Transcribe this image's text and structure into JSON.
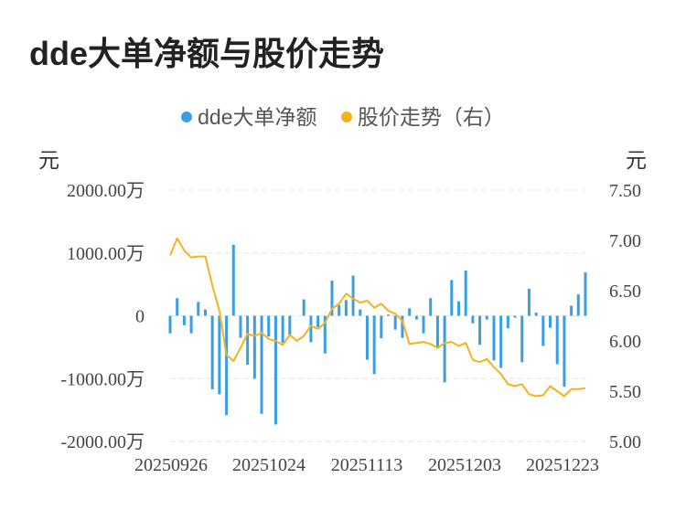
{
  "chart_data": {
    "type": "bar+line",
    "title": "dde大单净额与股价走势",
    "legend": [
      {
        "name": "dde大单净额",
        "color": "#3a9ee4"
      },
      {
        "name": "股价走势（右）",
        "color": "#f5b21e"
      }
    ],
    "legend_position": "top-center",
    "left_unit": "元",
    "right_unit": "元",
    "y_left": {
      "min": -2000,
      "max": 2000,
      "ticks": [
        "2000.00万",
        "1000.00万",
        "0",
        "-1000.00万",
        "-2000.00万"
      ]
    },
    "y_right": {
      "min": 5.0,
      "max": 7.5,
      "ticks": [
        "7.50",
        "7.00",
        "6.50",
        "6.00",
        "5.50",
        "5.00"
      ]
    },
    "x_ticks": [
      "20250926",
      "20251024",
      "20251113",
      "20251203",
      "20251223"
    ],
    "grid": true,
    "bar_values": [
      -280,
      280,
      -150,
      -280,
      220,
      100,
      -1170,
      -1250,
      -1580,
      1130,
      -350,
      -780,
      -1000,
      -1560,
      -330,
      -1730,
      -430,
      -310,
      0,
      260,
      -420,
      -180,
      -600,
      560,
      170,
      250,
      640,
      100,
      -700,
      -930,
      -360,
      20,
      -220,
      -350,
      120,
      -60,
      -280,
      280,
      -520,
      -1060,
      570,
      230,
      720,
      -120,
      -460,
      -60,
      -710,
      -830,
      -200,
      -30,
      -740,
      430,
      50,
      -480,
      -190,
      -770,
      -1130,
      160,
      340,
      690
    ],
    "price_values": [
      6.85,
      7.02,
      6.9,
      6.83,
      6.84,
      6.84,
      6.55,
      6.3,
      5.86,
      5.8,
      5.93,
      6.07,
      6.05,
      6.08,
      6.02,
      6.0,
      5.96,
      6.06,
      6.0,
      6.05,
      6.15,
      6.12,
      6.18,
      6.32,
      6.37,
      6.47,
      6.42,
      6.38,
      6.4,
      6.33,
      6.37,
      6.3,
      6.27,
      6.2,
      5.97,
      5.98,
      5.99,
      5.97,
      5.93,
      5.98,
      5.99,
      5.95,
      5.98,
      5.81,
      5.79,
      5.82,
      5.74,
      5.67,
      5.57,
      5.55,
      5.57,
      5.47,
      5.45,
      5.46,
      5.55,
      5.5,
      5.45,
      5.52,
      5.52,
      5.53
    ]
  }
}
